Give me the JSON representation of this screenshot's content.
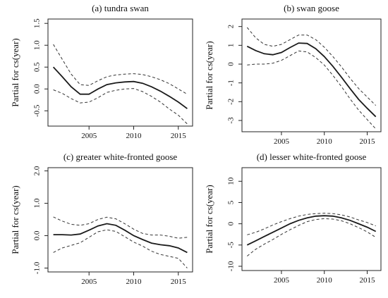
{
  "chart_data": [
    {
      "type": "line",
      "title": "(a) tundra swan",
      "ylabel": "Partial for cs(year)",
      "xlim": [
        2000.4,
        2016.6
      ],
      "ylim": [
        -0.85,
        1.6
      ],
      "xticks": [
        2005,
        2010,
        2015
      ],
      "yticks": [
        "-0.5",
        "0.0",
        "0.5",
        "1.0",
        "1.5"
      ],
      "x": [
        2001,
        2002,
        2003,
        2004,
        2005,
        2006,
        2007,
        2008,
        2009,
        2010,
        2011,
        2012,
        2013,
        2014,
        2015,
        2016
      ],
      "series": [
        {
          "values": [
            0.5,
            0.28,
            0.05,
            -0.12,
            -0.12,
            0.0,
            0.1,
            0.14,
            0.16,
            0.17,
            0.13,
            0.05,
            -0.05,
            -0.17,
            -0.3,
            -0.45
          ]
        },
        {
          "values": [
            1.02,
            0.68,
            0.34,
            0.1,
            0.08,
            0.19,
            0.28,
            0.32,
            0.34,
            0.35,
            0.33,
            0.28,
            0.21,
            0.12,
            0.0,
            -0.12
          ]
        },
        {
          "values": [
            -0.02,
            -0.1,
            -0.22,
            -0.32,
            -0.3,
            -0.2,
            -0.08,
            -0.03,
            0.0,
            0.01,
            -0.06,
            -0.17,
            -0.3,
            -0.46,
            -0.6,
            -0.8
          ]
        }
      ]
    },
    {
      "type": "line",
      "title": "(b) swan goose",
      "ylabel": "Partial for cs(year)",
      "xlim": [
        2000.4,
        2016.6
      ],
      "ylim": [
        -3.6,
        2.4
      ],
      "xticks": [
        2005,
        2010,
        2015
      ],
      "yticks": [
        "-3",
        "-2",
        "-1",
        "0",
        "1",
        "2"
      ],
      "x": [
        2001,
        2002,
        2003,
        2004,
        2005,
        2006,
        2007,
        2008,
        2009,
        2010,
        2011,
        2012,
        2013,
        2014,
        2015,
        2016
      ],
      "series": [
        {
          "values": [
            0.95,
            0.72,
            0.55,
            0.5,
            0.62,
            0.88,
            1.12,
            1.1,
            0.82,
            0.4,
            -0.12,
            -0.7,
            -1.3,
            -1.88,
            -2.35,
            -2.8
          ]
        },
        {
          "values": [
            1.95,
            1.4,
            1.05,
            0.95,
            1.05,
            1.3,
            1.55,
            1.55,
            1.3,
            0.9,
            0.4,
            -0.15,
            -0.75,
            -1.3,
            -1.75,
            -2.2
          ]
        },
        {
          "values": [
            -0.05,
            0.0,
            0.0,
            0.05,
            0.2,
            0.45,
            0.7,
            0.65,
            0.35,
            -0.05,
            -0.6,
            -1.2,
            -1.85,
            -2.45,
            -2.95,
            -3.45
          ]
        }
      ]
    },
    {
      "type": "line",
      "title": "(c) greater white-fronted goose",
      "ylabel": "Partial for cs(year)",
      "xlim": [
        2000.4,
        2016.6
      ],
      "ylim": [
        -1.12,
        2.1
      ],
      "xticks": [
        2005,
        2010,
        2015
      ],
      "yticks": [
        "-1.0",
        "0.0",
        "1.0",
        "2.0"
      ],
      "x": [
        2001,
        2002,
        2003,
        2004,
        2005,
        2006,
        2007,
        2008,
        2009,
        2010,
        2011,
        2012,
        2013,
        2014,
        2015,
        2016
      ],
      "series": [
        {
          "values": [
            0.03,
            0.03,
            0.02,
            0.05,
            0.17,
            0.3,
            0.37,
            0.32,
            0.17,
            0.0,
            -0.12,
            -0.23,
            -0.28,
            -0.31,
            -0.38,
            -0.52
          ]
        },
        {
          "values": [
            0.58,
            0.45,
            0.35,
            0.32,
            0.37,
            0.5,
            0.57,
            0.52,
            0.37,
            0.2,
            0.07,
            0.02,
            0.02,
            -0.02,
            -0.08,
            -0.05
          ]
        },
        {
          "values": [
            -0.52,
            -0.38,
            -0.3,
            -0.22,
            -0.05,
            0.12,
            0.18,
            0.13,
            -0.03,
            -0.2,
            -0.32,
            -0.48,
            -0.58,
            -0.64,
            -0.7,
            -1.0
          ]
        }
      ]
    },
    {
      "type": "line",
      "title": "(d) lesser white-fronted goose",
      "ylabel": "Partial for cs(year)",
      "xlim": [
        2000.4,
        2016.6
      ],
      "ylim": [
        -11,
        13.2
      ],
      "xticks": [
        2005,
        2010,
        2015
      ],
      "yticks": [
        "-10",
        "-5",
        "0",
        "5",
        "10"
      ],
      "x": [
        2001,
        2002,
        2003,
        2004,
        2005,
        2006,
        2007,
        2008,
        2009,
        2010,
        2011,
        2012,
        2013,
        2014,
        2015,
        2016
      ],
      "series": [
        {
          "values": [
            -5.0,
            -4.0,
            -3.0,
            -2.0,
            -1.0,
            0.0,
            0.8,
            1.4,
            1.8,
            1.9,
            1.8,
            1.4,
            0.8,
            0.0,
            -0.8,
            -1.8
          ]
        },
        {
          "values": [
            -2.6,
            -2.0,
            -1.2,
            -0.3,
            0.5,
            1.2,
            1.8,
            2.2,
            2.4,
            2.5,
            2.4,
            2.1,
            1.6,
            0.9,
            0.3,
            -0.5
          ]
        },
        {
          "values": [
            -7.6,
            -6.0,
            -4.8,
            -3.7,
            -2.5,
            -1.4,
            -0.4,
            0.5,
            1.0,
            1.2,
            1.1,
            0.7,
            0.0,
            -0.9,
            -1.9,
            -3.2
          ]
        }
      ]
    }
  ]
}
